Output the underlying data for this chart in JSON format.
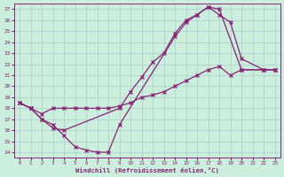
{
  "xlabel": "Windchill (Refroidissement éolien,°C)",
  "bg_color": "#cceedd",
  "line_color": "#882277",
  "grid_color": "#aacccc",
  "xlim": [
    -0.5,
    23.5
  ],
  "ylim": [
    13.5,
    27.5
  ],
  "yticks": [
    14,
    15,
    16,
    17,
    18,
    19,
    20,
    21,
    22,
    23,
    24,
    25,
    26,
    27
  ],
  "xticks": [
    0,
    1,
    2,
    3,
    4,
    5,
    6,
    7,
    8,
    9,
    10,
    11,
    12,
    13,
    14,
    15,
    16,
    17,
    18,
    19,
    20,
    21,
    22,
    23
  ],
  "line1_x": [
    0,
    1,
    2,
    3,
    4,
    5,
    6,
    7,
    8,
    9,
    14,
    15,
    16,
    17,
    18,
    20,
    22,
    23
  ],
  "line1_y": [
    18.5,
    18.0,
    17.0,
    16.5,
    15.5,
    14.5,
    14.2,
    14.0,
    14.0,
    16.5,
    24.5,
    25.8,
    26.5,
    27.2,
    27.0,
    21.5,
    21.5,
    21.5
  ],
  "line2_x": [
    0,
    1,
    2,
    3,
    4,
    9,
    10,
    11,
    12,
    13,
    14,
    15,
    16,
    17,
    18,
    19,
    20,
    22,
    23
  ],
  "line2_y": [
    18.5,
    18.0,
    17.0,
    16.2,
    16.0,
    18.0,
    19.5,
    20.8,
    22.2,
    23.0,
    24.8,
    26.0,
    26.5,
    27.2,
    26.5,
    25.8,
    22.5,
    21.5,
    21.5
  ],
  "line3_x": [
    0,
    1,
    2,
    3,
    4,
    5,
    6,
    7,
    8,
    9,
    10,
    11,
    12,
    13,
    14,
    15,
    16,
    17,
    18,
    19,
    20,
    22,
    23
  ],
  "line3_y": [
    18.5,
    18.0,
    17.5,
    18.0,
    18.0,
    18.0,
    18.0,
    18.0,
    18.0,
    18.2,
    18.5,
    19.0,
    19.2,
    19.5,
    20.0,
    20.5,
    21.0,
    21.5,
    21.8,
    21.0,
    21.5,
    21.5,
    21.5
  ]
}
